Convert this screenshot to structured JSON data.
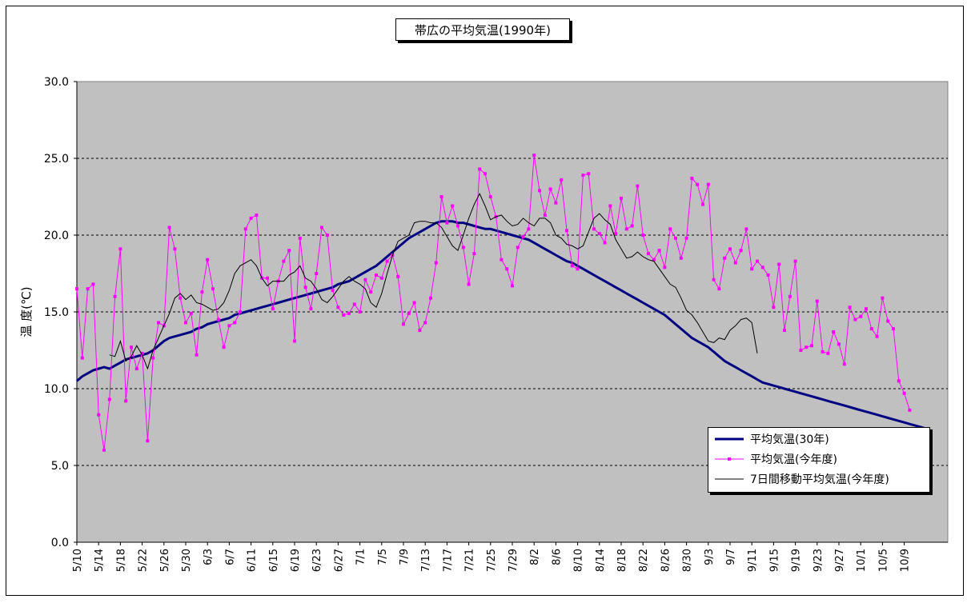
{
  "chart_data": {
    "type": "line",
    "title": "帯広の平均気温(1990年)",
    "ylabel": "温 度(℃)",
    "xlabel": "",
    "ylim": [
      0,
      30
    ],
    "yticks": [
      "0.0",
      "5.0",
      "10.0",
      "15.0",
      "20.0",
      "25.0",
      "30.0"
    ],
    "x_tick_labels": [
      "5/10",
      "5/14",
      "5/18",
      "5/22",
      "5/26",
      "5/30",
      "6/3",
      "6/7",
      "6/11",
      "6/15",
      "6/19",
      "6/23",
      "6/27",
      "7/1",
      "7/5",
      "7/9",
      "7/13",
      "7/17",
      "7/21",
      "7/25",
      "7/29",
      "8/2",
      "8/6",
      "8/10",
      "8/14",
      "8/18",
      "8/22",
      "8/26",
      "8/30",
      "9/3",
      "9/7",
      "9/11",
      "9/15",
      "9/19",
      "9/23",
      "9/27",
      "10/1",
      "10/5",
      "10/9"
    ],
    "grid": "horizontal dashed",
    "legend_position": "bottom-right",
    "colors": {
      "normal": "#000080",
      "current": "#ff00ff",
      "moving": "#000000",
      "plot_bg": "#c0c0c0"
    },
    "series": [
      {
        "name": "平均気温(30年)",
        "values": [
          10.5,
          10.8,
          11.0,
          11.2,
          11.3,
          11.4,
          11.3,
          11.5,
          11.7,
          11.9,
          12.0,
          12.1,
          12.2,
          12.3,
          12.5,
          12.8,
          13.1,
          13.3,
          13.4,
          13.5,
          13.6,
          13.7,
          13.9,
          14.0,
          14.2,
          14.3,
          14.4,
          14.5,
          14.6,
          14.8,
          14.9,
          15.0,
          15.1,
          15.2,
          15.3,
          15.4,
          15.5,
          15.6,
          15.7,
          15.8,
          15.9,
          16.0,
          16.1,
          16.2,
          16.3,
          16.4,
          16.5,
          16.6,
          16.8,
          16.9,
          17.0,
          17.2,
          17.4,
          17.6,
          17.8,
          18.0,
          18.3,
          18.6,
          18.9,
          19.2,
          19.5,
          19.8,
          20.0,
          20.2,
          20.4,
          20.6,
          20.8,
          20.9,
          20.9,
          20.9,
          20.8,
          20.8,
          20.7,
          20.6,
          20.5,
          20.4,
          20.4,
          20.3,
          20.2,
          20.1,
          20.0,
          19.9,
          19.8,
          19.7,
          19.5,
          19.3,
          19.1,
          18.9,
          18.7,
          18.5,
          18.3,
          18.2,
          18.0,
          17.8,
          17.6,
          17.4,
          17.2,
          17.0,
          16.8,
          16.6,
          16.4,
          16.2,
          16.0,
          15.8,
          15.6,
          15.4,
          15.2,
          15.0,
          14.8,
          14.5,
          14.2,
          13.9,
          13.6,
          13.3,
          13.1,
          12.9,
          12.7,
          12.4,
          12.1,
          11.8,
          11.6,
          11.4,
          11.2,
          11.0,
          10.8,
          10.6,
          10.4,
          10.3,
          10.2,
          10.1,
          10.0,
          9.9,
          9.8,
          9.7,
          9.6,
          9.5,
          9.4,
          9.3,
          9.2,
          9.1,
          9.0,
          8.9,
          8.8,
          8.7,
          8.6,
          8.5,
          8.4,
          8.3,
          8.2,
          8.1,
          8.0,
          7.9,
          7.8,
          7.7,
          7.6,
          7.5,
          7.4
        ]
      },
      {
        "name": "平均気温(今年度)",
        "values": [
          16.5,
          12.0,
          16.5,
          16.8,
          8.3,
          6.0,
          9.3,
          16.0,
          19.1,
          9.2,
          12.7,
          11.3,
          12.3,
          6.6,
          12.0,
          14.3,
          14.1,
          20.5,
          19.1,
          15.9,
          14.3,
          14.9,
          12.2,
          16.3,
          18.4,
          16.5,
          14.5,
          12.7,
          14.1,
          14.3,
          15.0,
          20.4,
          21.1,
          21.3,
          17.2,
          17.2,
          15.2,
          17.0,
          18.3,
          19.0,
          13.1,
          19.8,
          16.6,
          15.2,
          17.5,
          20.5,
          20.0,
          16.4,
          15.3,
          14.8,
          14.9,
          15.5,
          15.0,
          17.1,
          16.3,
          17.4,
          17.2,
          18.3,
          18.7,
          17.3,
          14.2,
          14.9,
          15.6,
          13.8,
          14.3,
          15.9,
          18.2,
          22.5,
          20.8,
          21.9,
          20.6,
          19.2,
          16.8,
          18.8,
          24.3,
          24.0,
          22.5,
          21.2,
          18.4,
          17.8,
          16.7,
          19.2,
          19.9,
          20.4,
          25.2,
          22.9,
          21.3,
          23.0,
          22.1,
          23.6,
          20.3,
          18.0,
          17.8,
          23.9,
          24.0,
          20.4,
          20.1,
          19.5,
          21.9,
          20.1,
          22.4,
          20.4,
          20.6,
          23.2,
          20.0,
          18.8,
          18.4,
          19.0,
          17.9,
          20.4,
          19.8,
          18.5,
          19.8,
          23.7,
          23.3,
          22.0,
          23.3,
          17.1,
          16.5,
          18.5,
          19.1,
          18.2,
          19.0,
          20.4,
          17.8,
          18.3,
          17.9,
          17.4,
          15.3,
          18.1,
          13.8,
          16.0,
          18.3,
          12.5,
          12.7,
          12.8,
          15.7,
          12.4,
          12.3,
          13.7,
          12.9,
          11.6,
          15.3,
          14.5,
          14.7,
          15.2,
          13.9,
          13.4,
          15.9,
          14.4,
          13.9,
          10.5,
          9.7,
          8.6
        ]
      },
      {
        "name": "7日間移動平均気温(今年度)",
        "values": [
          null,
          null,
          null,
          null,
          null,
          null,
          12.2,
          12.1,
          13.1,
          11.8,
          12.1,
          12.8,
          12.2,
          11.3,
          12.5,
          13.3,
          14.1,
          14.9,
          15.9,
          16.2,
          15.8,
          16.1,
          15.6,
          15.5,
          15.3,
          15.1,
          15.2,
          15.6,
          16.4,
          17.5,
          18.0,
          18.2,
          18.4,
          18.0,
          17.2,
          16.7,
          17.0,
          17.0,
          17.0,
          17.4,
          17.6,
          18.0,
          17.2,
          17.0,
          16.5,
          15.8,
          15.6,
          16.0,
          16.5,
          17.0,
          17.3,
          17.0,
          16.8,
          16.5,
          15.6,
          15.3,
          16.2,
          17.5,
          18.7,
          19.6,
          19.8,
          20.0,
          20.8,
          20.9,
          20.9,
          20.8,
          20.8,
          20.5,
          19.9,
          19.3,
          19.0,
          20.0,
          21.1,
          22.0,
          22.7,
          21.9,
          21.0,
          21.2,
          21.3,
          20.9,
          20.6,
          20.7,
          21.1,
          20.8,
          20.6,
          21.1,
          21.1,
          20.8,
          20.0,
          19.8,
          19.4,
          19.3,
          19.1,
          19.3,
          20.2,
          21.1,
          21.4,
          21.0,
          20.7,
          19.7,
          19.1,
          18.5,
          18.6,
          18.9,
          18.6,
          18.4,
          18.3,
          17.8,
          17.3,
          16.8,
          16.6,
          15.9,
          15.1,
          14.8,
          14.3,
          13.7,
          13.1,
          13.0,
          13.3,
          13.2,
          13.8,
          14.1,
          14.5,
          14.6,
          14.3,
          12.3,
          null,
          null,
          null,
          null,
          null,
          null,
          null,
          null,
          null,
          null,
          null,
          null,
          null,
          null,
          null,
          null,
          null,
          null,
          null,
          null,
          null,
          null,
          null,
          null,
          null,
          null,
          null,
          null,
          null,
          null,
          null,
          null,
          null,
          null,
          null
        ]
      }
    ]
  }
}
